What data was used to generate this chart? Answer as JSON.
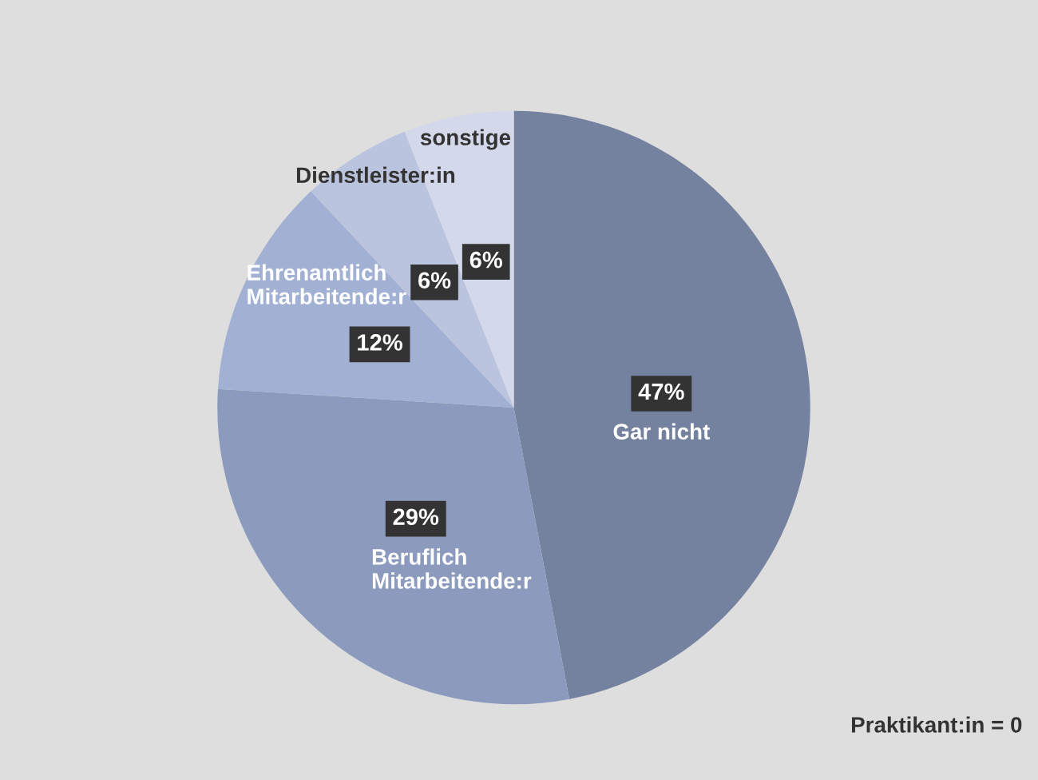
{
  "chart_data": {
    "type": "pie",
    "categories": [
      "Gar nicht",
      "Beruflich\nMitarbeitende:r",
      "Ehrenamtlich\nMitarbeitende:r",
      "Dienstleister:in",
      "sonstige"
    ],
    "values": [
      47,
      29,
      12,
      6,
      6
    ],
    "colors": [
      "#75829f",
      "#8c9bbd",
      "#a2b1d3",
      "#bac4de",
      "#d3d9ea"
    ],
    "value_labels": [
      "47%",
      "29%",
      "12%",
      "6%",
      "6%"
    ],
    "annotations": [
      "Praktikant:in = 0"
    ]
  }
}
